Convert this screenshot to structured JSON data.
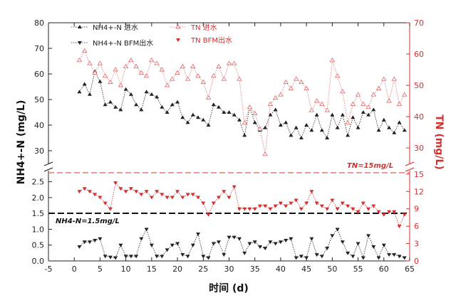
{
  "chart_data": {
    "type": "line",
    "x_ticks": [
      "-5",
      "0",
      "5",
      "10",
      "15",
      "20",
      "25",
      "30",
      "35",
      "40",
      "45",
      "50",
      "55",
      "60",
      "65"
    ],
    "xlabel": "时间 (d)",
    "ylabel_left": "NH4+-N (mg/L)",
    "ylabel_right": "TN (mg/L)",
    "left_upper_ticks": [
      "30",
      "40",
      "50",
      "60",
      "70",
      "80"
    ],
    "left_lower_ticks": [
      "0.0",
      "0.5",
      "1.0",
      "1.5",
      "2.0",
      "2.5"
    ],
    "right_upper_ticks": [
      "30",
      "40",
      "50",
      "60",
      "70"
    ],
    "right_lower_ticks": [
      "0",
      "3",
      "6",
      "9",
      "12",
      "15"
    ],
    "annotations": {
      "tn_limit": "TN=15mg/L",
      "nh4_limit": "NH4-N=1.5mg/L"
    },
    "legend": {
      "nh4_in": "NH4+-N 进水",
      "nh4_out": "NH4+-N BFM出水",
      "tn_in": "TN 进水",
      "tn_out": "TN BFM出水"
    },
    "x": [
      1,
      2,
      3,
      4,
      5,
      6,
      7,
      8,
      9,
      10,
      11,
      12,
      13,
      14,
      15,
      16,
      17,
      18,
      19,
      20,
      21,
      22,
      23,
      24,
      25,
      26,
      27,
      28,
      29,
      30,
      31,
      32,
      33,
      34,
      35,
      36,
      37,
      38,
      39,
      40,
      41,
      42,
      43,
      44,
      45,
      46,
      47,
      48,
      49,
      50,
      51,
      52,
      53,
      54,
      55,
      56,
      57,
      58,
      59,
      60,
      61,
      62,
      63,
      64
    ],
    "series": [
      {
        "name": "NH4+-N 进水",
        "color": "#222222",
        "marker": "triangle-up",
        "values": [
          53,
          56,
          52,
          61,
          57,
          48,
          49,
          47,
          46,
          54,
          52,
          48,
          46,
          53,
          52,
          51,
          47,
          45,
          48,
          49,
          43,
          41,
          44,
          43,
          42,
          40,
          48,
          47,
          45,
          45,
          44,
          42,
          36,
          47,
          41,
          38,
          39,
          44,
          46,
          40,
          41,
          36,
          39,
          35,
          40,
          38,
          44,
          38,
          35,
          44,
          39,
          44,
          36,
          43,
          39,
          45,
          44,
          46,
          38,
          42,
          39,
          37,
          41,
          38
        ]
      },
      {
        "name": "NH4+-N BFM出水",
        "color": "#222222",
        "marker": "triangle-down",
        "values": [
          0.45,
          0.6,
          0.6,
          0.65,
          0.7,
          0.15,
          0.12,
          0.1,
          0.5,
          0.15,
          0.15,
          0.15,
          0.7,
          1.0,
          0.5,
          0.15,
          0.15,
          0.35,
          0.5,
          0.55,
          0.2,
          0.15,
          0.5,
          0.85,
          0.15,
          0.1,
          0.55,
          0.6,
          0.2,
          0.75,
          0.75,
          0.7,
          0.25,
          0.55,
          0.6,
          0.45,
          0.4,
          0.6,
          0.55,
          0.6,
          0.65,
          0.7,
          0.1,
          0.15,
          0.1,
          0.7,
          0.2,
          0.15,
          0.4,
          0.8,
          1.0,
          0.6,
          0.25,
          0.15,
          0.55,
          0.1,
          0.8,
          0.45,
          0.1,
          0.5,
          0.2,
          0.2,
          0.15,
          0.1
        ]
      },
      {
        "name": "TN 进水",
        "color": "#e57373",
        "marker": "triangle-up-open",
        "values": [
          58,
          61,
          57,
          54,
          57,
          53,
          51,
          55,
          50,
          56,
          58,
          56,
          54,
          53,
          58,
          57,
          55,
          50,
          52,
          54,
          56,
          52,
          56,
          53,
          51,
          46,
          53,
          56,
          52,
          57,
          57,
          52,
          38,
          43,
          41,
          36,
          28,
          44,
          46,
          47,
          51,
          49,
          52,
          51,
          49,
          42,
          45,
          44,
          42,
          58,
          53,
          48,
          38,
          44,
          47,
          44,
          43,
          47,
          49,
          52,
          45,
          52,
          44,
          47
        ]
      },
      {
        "name": "TN BFM出水",
        "color": "#d32f2f",
        "marker": "triangle-down-filled",
        "values": [
          12,
          12.5,
          12,
          11.5,
          11,
          10,
          9,
          13.5,
          12.5,
          12,
          12.5,
          12,
          11.5,
          12,
          11,
          12,
          11.5,
          11,
          11,
          12,
          11,
          11.5,
          11.5,
          11,
          10,
          8,
          10,
          11,
          12,
          11,
          12.8,
          9,
          9,
          9,
          9,
          9.5,
          9.5,
          9,
          9.5,
          10,
          9.5,
          10,
          10.5,
          9,
          10,
          12,
          10,
          9.5,
          9,
          10.5,
          9,
          10,
          9.5,
          9,
          8.5,
          10,
          9,
          9.5,
          8.5,
          8,
          8.5,
          8.5,
          6,
          8
        ]
      }
    ]
  }
}
